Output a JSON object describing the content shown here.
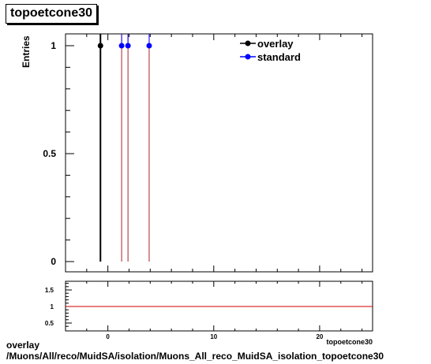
{
  "title": "topoetcone30",
  "footer": {
    "line1": "overlay",
    "line2": "/Muons/All/reco/MuidSA/isolation/Muons_All_reco_MuidSA_isolation_topoetcone30"
  },
  "colors": {
    "overlay": "#000000",
    "standard": "#0000ff",
    "standard_line": "#b01e28",
    "ratio_line": "#cc0000"
  },
  "chart_data": [
    {
      "type": "line",
      "title": "topoetcone30",
      "xlabel": "topoetcone30",
      "ylabel": "Entries",
      "xlim": [
        -4,
        25
      ],
      "ylim": [
        0,
        1.05
      ],
      "yticks": [
        {
          "value": 0,
          "label": "0"
        },
        {
          "value": 0.5,
          "label": "0.5"
        },
        {
          "value": 1,
          "label": "1"
        }
      ],
      "legend_position": "top-right",
      "series": [
        {
          "name": "overlay",
          "marker": "circle",
          "color": "#000000",
          "points": [
            {
              "x": -0.7,
              "y": 1
            }
          ]
        },
        {
          "name": "standard",
          "marker": "circle",
          "color": "#0000ff",
          "points": [
            {
              "x": 1.3,
              "y": 1
            },
            {
              "x": 1.9,
              "y": 1
            },
            {
              "x": 3.9,
              "y": 1
            }
          ]
        }
      ]
    },
    {
      "type": "line",
      "xlim": [
        -4,
        25
      ],
      "ylim": [
        0.3,
        1.75
      ],
      "xticks": [
        {
          "value": 0,
          "label": "0"
        },
        {
          "value": 10,
          "label": "10"
        },
        {
          "value": 20,
          "label": "20"
        }
      ],
      "yticks": [
        {
          "value": 0.5,
          "label": "0.5"
        },
        {
          "value": 1,
          "label": "1"
        },
        {
          "value": 1.5,
          "label": "1.5"
        }
      ],
      "xlabel": "topoetcone30",
      "series": [
        {
          "name": "",
          "values": [
            1,
            1
          ],
          "x": [
            -4,
            25
          ]
        }
      ]
    }
  ]
}
